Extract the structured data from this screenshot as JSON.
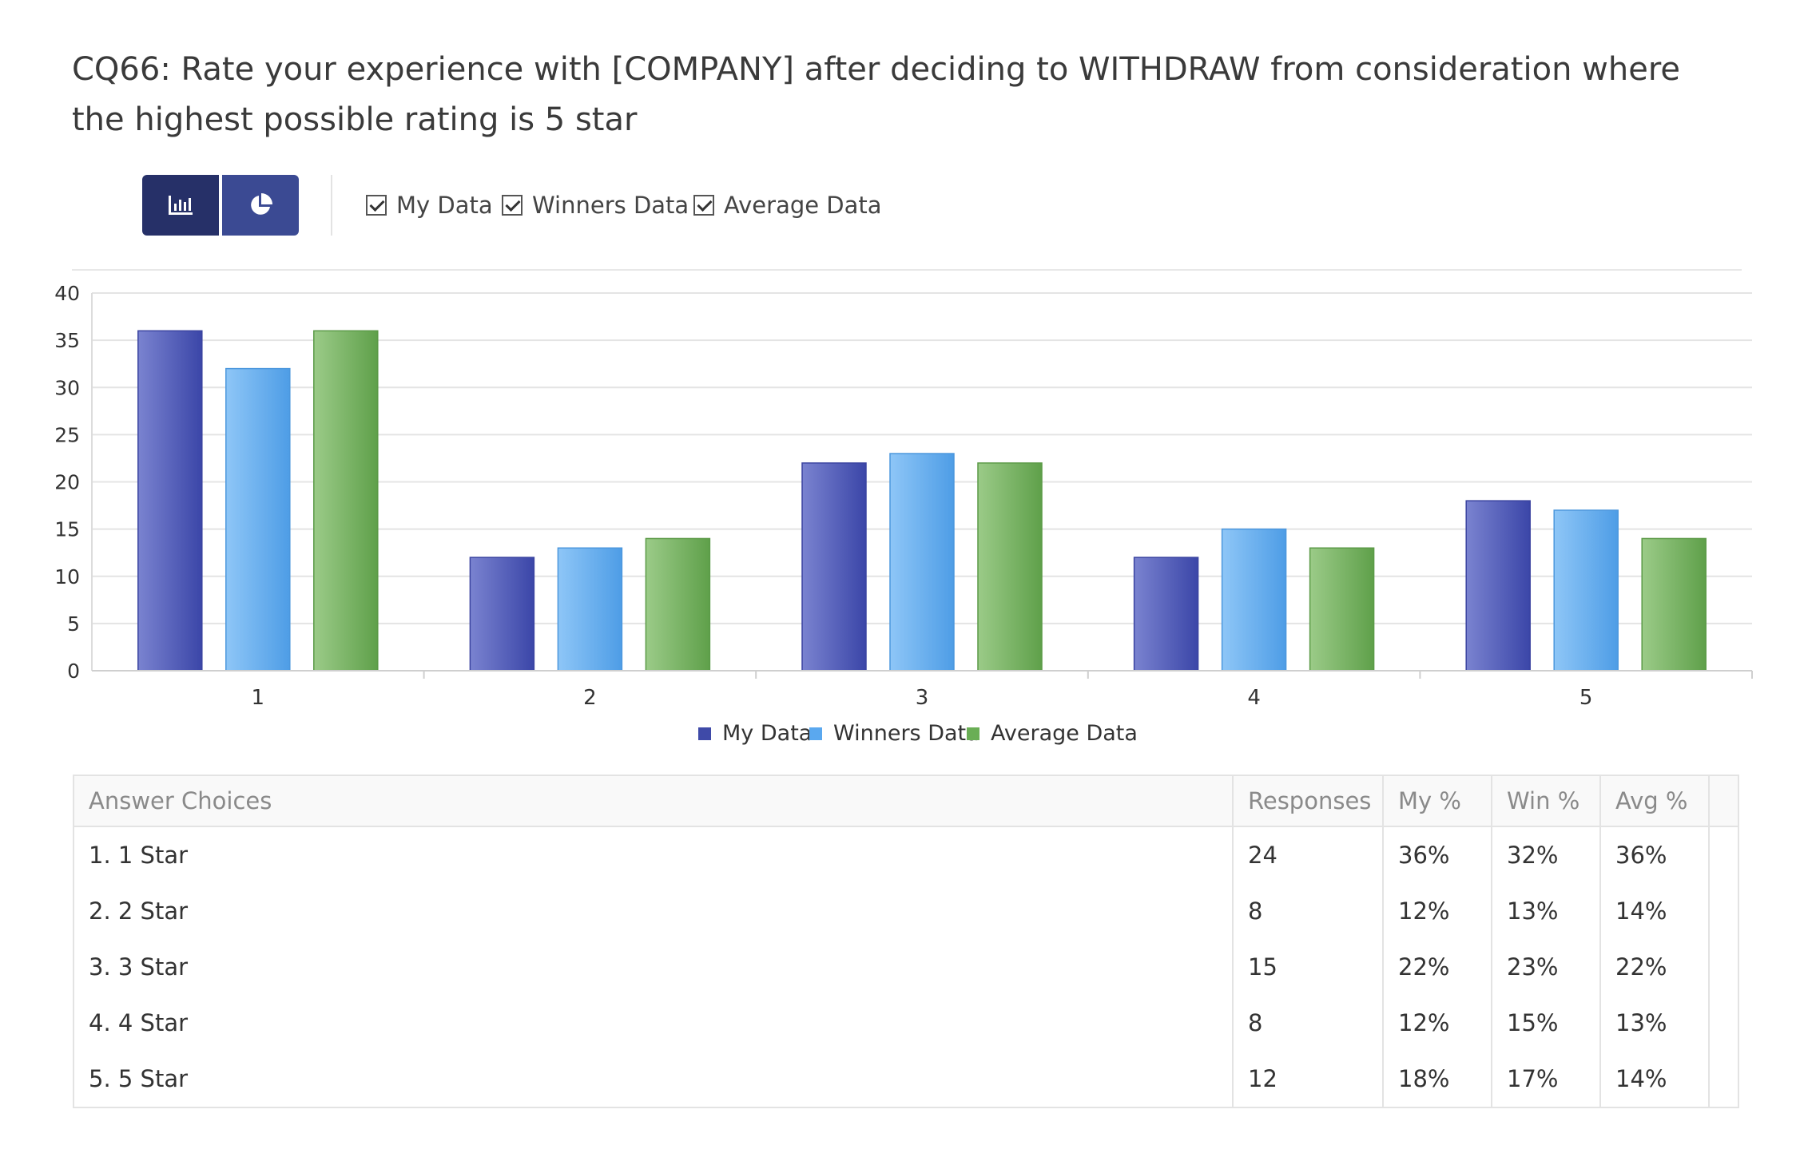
{
  "title": "CQ66: Rate your experience with [COMPANY] after deciding to WITHDRAW from consideration where the highest possible rating is 5 star",
  "toolbar": {
    "bar_view_icon": "bar-chart-icon",
    "pie_view_icon": "pie-chart-icon",
    "toggles": [
      {
        "label": "My Data",
        "checked": true
      },
      {
        "label": "Winners Data",
        "checked": true
      },
      {
        "label": "Average Data",
        "checked": true
      }
    ]
  },
  "colors": {
    "my": "#4f5bb8",
    "winners": "#6ab0f0",
    "average": "#7ab668",
    "active_button": "#263068",
    "button": "#3b4a93"
  },
  "chart_data": {
    "type": "bar",
    "categories": [
      "1",
      "2",
      "3",
      "4",
      "5"
    ],
    "series": [
      {
        "name": "My Data",
        "values": [
          36,
          12,
          22,
          12,
          18
        ]
      },
      {
        "name": "Winners Data",
        "values": [
          32,
          13,
          23,
          15,
          17
        ]
      },
      {
        "name": "Average Data",
        "values": [
          36,
          14,
          22,
          13,
          14
        ]
      }
    ],
    "ylim": [
      0,
      40
    ],
    "yticks": [
      0,
      5,
      10,
      15,
      20,
      25,
      30,
      35,
      40
    ],
    "grid": true,
    "legend": "bottom-center"
  },
  "table": {
    "headers": [
      "Answer Choices",
      "Responses",
      "My %",
      "Win %",
      "Avg %"
    ],
    "rows": [
      [
        "1. 1 Star",
        "24",
        "36%",
        "32%",
        "36%"
      ],
      [
        "2. 2 Star",
        "8",
        "12%",
        "13%",
        "14%"
      ],
      [
        "3. 3 Star",
        "15",
        "22%",
        "23%",
        "22%"
      ],
      [
        "4. 4 Star",
        "8",
        "12%",
        "15%",
        "13%"
      ],
      [
        "5. 5 Star",
        "12",
        "18%",
        "17%",
        "14%"
      ]
    ]
  }
}
